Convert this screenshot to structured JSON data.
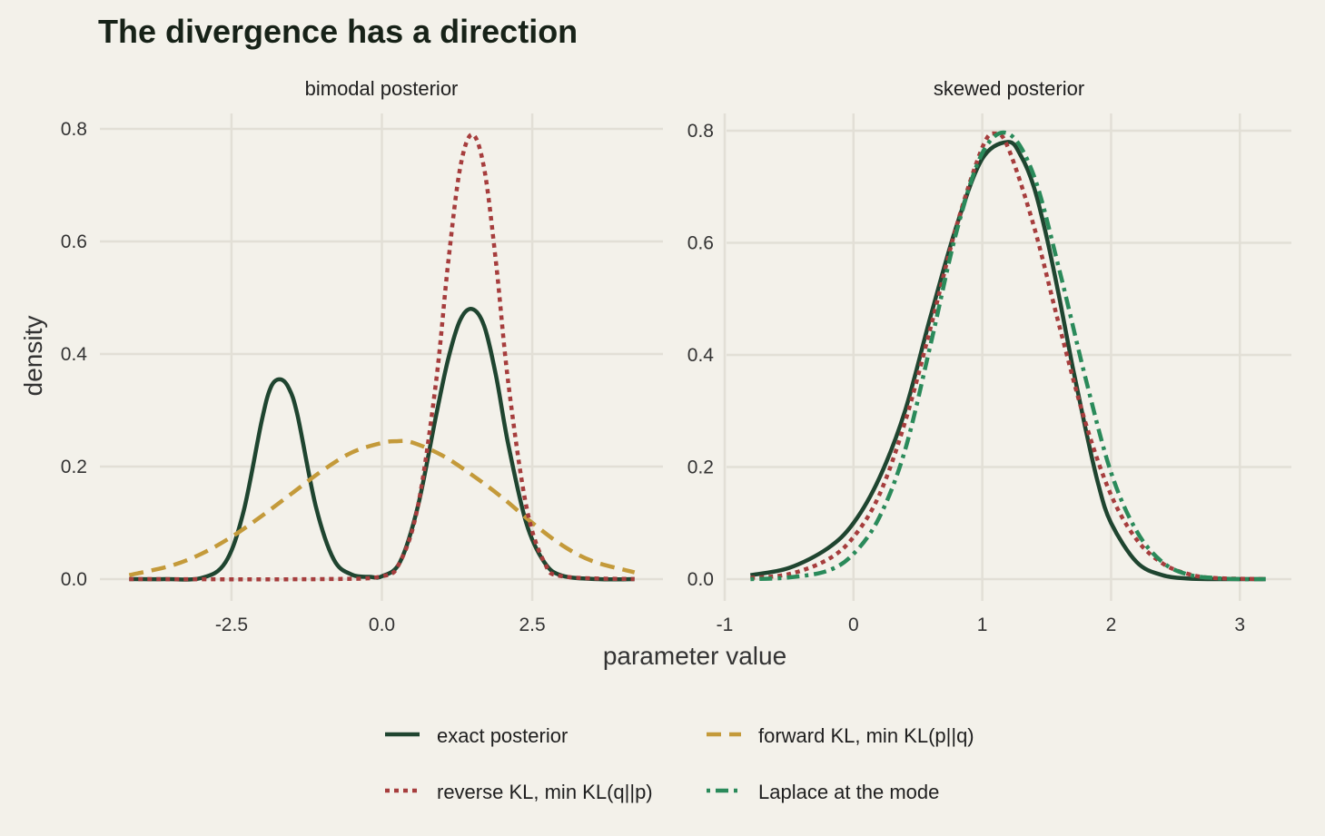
{
  "title": "The divergence has a direction",
  "xlabel": "parameter value",
  "ylabel": "density",
  "colors": {
    "background": "#f3f1ea",
    "grid": "#e2dfd6",
    "exact": "#1f4530",
    "reverse": "#a63d3d",
    "forward": "#c49a3a",
    "laplace": "#2a8a5a"
  },
  "legend": [
    {
      "key": "exact",
      "label": "exact posterior",
      "dash": "solid"
    },
    {
      "key": "forward",
      "label": "forward KL, min KL(p||q)",
      "dash": "longdash"
    },
    {
      "key": "reverse",
      "label": "reverse KL, min KL(q||p)",
      "dash": "dotted"
    },
    {
      "key": "laplace",
      "label": "Laplace at the mode",
      "dash": "dotdash"
    }
  ],
  "chart_data": [
    {
      "type": "line",
      "panel": "bimodal posterior",
      "xlim": [
        -4.25,
        4.25
      ],
      "ylim": [
        0,
        0.8
      ],
      "xticks": [
        -2.5,
        0.0,
        2.5
      ],
      "xtick_labels": [
        "-2.5",
        "0.0",
        "2.5"
      ],
      "yticks": [
        0.0,
        0.2,
        0.4,
        0.6,
        0.8
      ],
      "ytick_labels": [
        "0.0",
        "0.2",
        "0.4",
        "0.6",
        "0.8"
      ],
      "grid": true,
      "series": [
        {
          "name": "exact posterior",
          "key": "exact",
          "x": [
            -4.2,
            -3.6,
            -3.0,
            -2.6,
            -2.3,
            -2.0,
            -1.85,
            -1.7,
            -1.55,
            -1.4,
            -1.1,
            -0.8,
            -0.5,
            -0.2,
            0.0,
            0.3,
            0.6,
            0.9,
            1.1,
            1.3,
            1.5,
            1.7,
            1.9,
            2.1,
            2.4,
            2.7,
            3.0,
            3.6,
            4.2
          ],
          "y": [
            0.0,
            0.0,
            0.002,
            0.03,
            0.12,
            0.28,
            0.34,
            0.355,
            0.34,
            0.29,
            0.13,
            0.035,
            0.008,
            0.004,
            0.005,
            0.03,
            0.13,
            0.29,
            0.39,
            0.46,
            0.48,
            0.45,
            0.36,
            0.24,
            0.1,
            0.03,
            0.006,
            0.0,
            0.0
          ]
        },
        {
          "name": "forward KL, min KL(p||q)",
          "key": "forward",
          "x": [
            -4.2,
            -3.5,
            -3.0,
            -2.5,
            -2.0,
            -1.5,
            -1.0,
            -0.5,
            0.0,
            0.25,
            0.5,
            1.0,
            1.5,
            2.0,
            2.5,
            3.0,
            3.5,
            4.2
          ],
          "y": [
            0.007,
            0.024,
            0.045,
            0.075,
            0.112,
            0.152,
            0.192,
            0.225,
            0.242,
            0.245,
            0.243,
            0.22,
            0.185,
            0.145,
            0.1,
            0.06,
            0.032,
            0.012
          ]
        },
        {
          "name": "reverse KL, min KL(q||p)",
          "key": "reverse",
          "x": [
            -4.2,
            -1.0,
            0.0,
            0.3,
            0.6,
            0.9,
            1.1,
            1.3,
            1.5,
            1.7,
            1.9,
            2.1,
            2.4,
            2.7,
            3.0,
            4.2
          ],
          "y": [
            0.0,
            0.0,
            0.005,
            0.03,
            0.13,
            0.35,
            0.56,
            0.73,
            0.79,
            0.73,
            0.56,
            0.35,
            0.13,
            0.03,
            0.005,
            0.0
          ]
        }
      ]
    },
    {
      "type": "line",
      "panel": "skewed posterior",
      "xlim": [
        -1.0,
        3.4
      ],
      "ylim": [
        0,
        0.8
      ],
      "xticks": [
        -1,
        0,
        1,
        2,
        3
      ],
      "xtick_labels": [
        "-1",
        "0",
        "1",
        "2",
        "3"
      ],
      "yticks": [
        0.0,
        0.2,
        0.4,
        0.6,
        0.8
      ],
      "ytick_labels": [
        "0.0",
        "0.2",
        "0.4",
        "0.6",
        "0.8"
      ],
      "grid": true,
      "series": [
        {
          "name": "exact posterior",
          "key": "exact",
          "x": [
            -0.8,
            -0.5,
            -0.2,
            0.0,
            0.2,
            0.4,
            0.6,
            0.8,
            1.0,
            1.2,
            1.3,
            1.4,
            1.5,
            1.6,
            1.7,
            1.8,
            1.9,
            2.0,
            2.2,
            2.4,
            2.6,
            2.8,
            3.0,
            3.2
          ],
          "y": [
            0.007,
            0.02,
            0.055,
            0.1,
            0.18,
            0.3,
            0.47,
            0.63,
            0.75,
            0.78,
            0.755,
            0.7,
            0.61,
            0.5,
            0.38,
            0.27,
            0.17,
            0.1,
            0.03,
            0.007,
            0.001,
            0.0,
            0.0,
            0.0
          ]
        },
        {
          "name": "reverse KL, min KL(q||p)",
          "key": "reverse",
          "x": [
            -0.8,
            -0.5,
            -0.2,
            0.0,
            0.2,
            0.4,
            0.6,
            0.8,
            1.0,
            1.1,
            1.2,
            1.4,
            1.6,
            1.8,
            2.0,
            2.2,
            2.4,
            2.6,
            2.8,
            3.2
          ],
          "y": [
            0.002,
            0.009,
            0.035,
            0.075,
            0.15,
            0.28,
            0.45,
            0.63,
            0.77,
            0.795,
            0.77,
            0.63,
            0.45,
            0.28,
            0.15,
            0.07,
            0.028,
            0.009,
            0.002,
            0.0
          ]
        },
        {
          "name": "Laplace at the mode",
          "key": "laplace",
          "x": [
            -0.8,
            -0.5,
            -0.2,
            0.0,
            0.2,
            0.4,
            0.6,
            0.8,
            1.0,
            1.2,
            1.4,
            1.6,
            1.8,
            2.0,
            2.2,
            2.4,
            2.6,
            2.8,
            3.0,
            3.2
          ],
          "y": [
            0.0,
            0.003,
            0.015,
            0.045,
            0.11,
            0.23,
            0.42,
            0.62,
            0.76,
            0.795,
            0.72,
            0.55,
            0.36,
            0.19,
            0.085,
            0.03,
            0.008,
            0.002,
            0.0,
            0.0
          ]
        }
      ]
    }
  ]
}
